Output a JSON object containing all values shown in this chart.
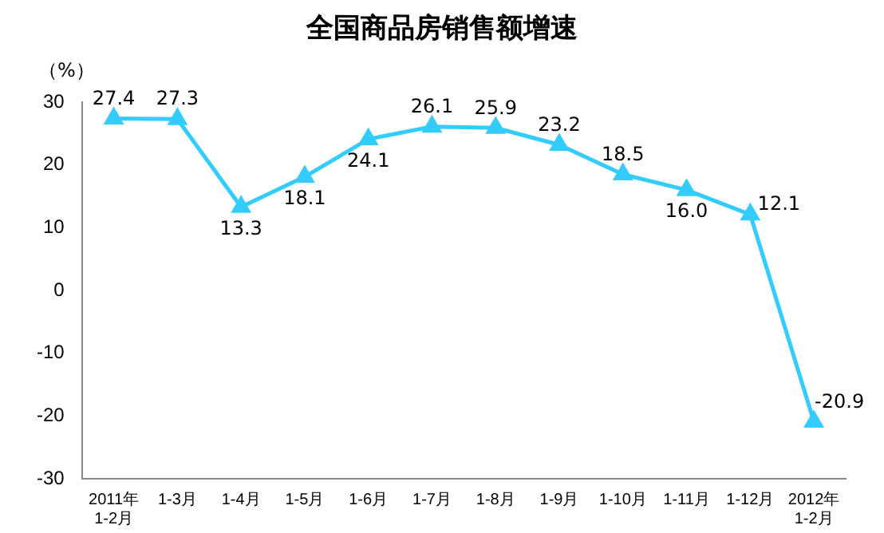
{
  "chart_data": {
    "type": "line",
    "title": "全国商品房销售额增速",
    "ylabel": "（%）",
    "categories": [
      "2011年\n1-2月",
      "1-3月",
      "1-4月",
      "1-5月",
      "1-6月",
      "1-7月",
      "1-8月",
      "1-9月",
      "1-10月",
      "1-11月",
      "1-12月",
      "2012年\n1-2月"
    ],
    "series": [
      {
        "color": "#33ccff",
        "values": [
          27.4,
          27.3,
          13.3,
          18.1,
          24.1,
          26.1,
          25.9,
          23.2,
          18.5,
          16.0,
          12.1,
          -20.9
        ],
        "value_labels": [
          "27.4",
          "27.3",
          "13.3",
          "18.1",
          "24.1",
          "26.1",
          "25.9",
          "23.2",
          "18.5",
          "16.0",
          "12.1",
          "-20.9"
        ]
      }
    ],
    "ylim": [
      -30,
      30
    ],
    "yticks": [
      -30,
      -20,
      -10,
      0,
      10,
      20,
      30
    ],
    "grid": false,
    "legend": false,
    "marker": "triangle"
  }
}
